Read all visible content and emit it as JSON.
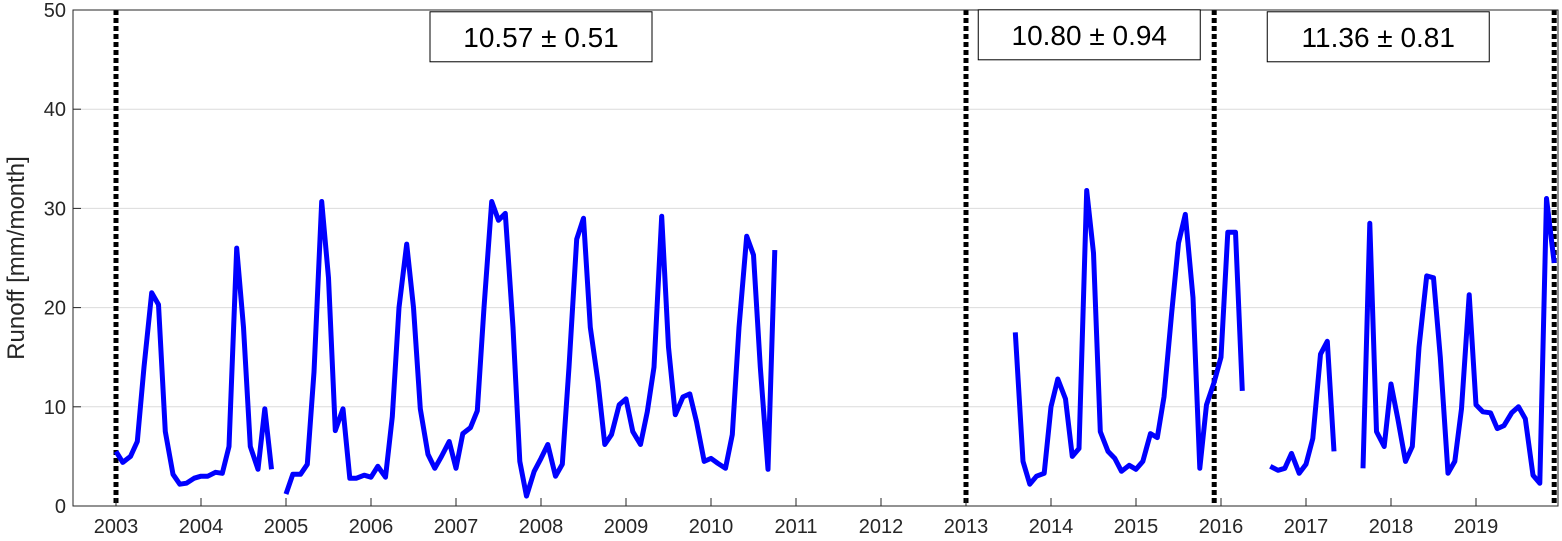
{
  "chart_data": {
    "type": "line",
    "title": "",
    "xlabel": "",
    "ylabel": "Runoff [mm/month]",
    "xlim": [
      2003,
      2020.0
    ],
    "ylim": [
      0,
      50
    ],
    "xticks": [
      2003,
      2004,
      2005,
      2006,
      2007,
      2008,
      2009,
      2010,
      2011,
      2012,
      2013,
      2014,
      2015,
      2016,
      2017,
      2018,
      2019
    ],
    "yticks": [
      0,
      10,
      20,
      30,
      40,
      50
    ],
    "grid": "horizontal",
    "colors": {
      "series": "#0000ff",
      "divider": "#000000",
      "grid": "#dcdcdc"
    },
    "dividers": [
      2003.0,
      2013.0,
      2015.92,
      2019.92
    ],
    "annotations": [
      {
        "text": "10.57 ± 0.51",
        "x": 2008.0,
        "y": 47.3
      },
      {
        "text": "10.80 ± 0.94",
        "x": 2014.45,
        "y": 47.5
      },
      {
        "text": "11.36 ± 0.81",
        "x": 2017.85,
        "y": 47.3
      }
    ],
    "series": [
      {
        "segments": [
          [
            [
              2003.0,
              5.5
            ],
            [
              2003.08,
              4.4
            ],
            [
              2003.17,
              5.0
            ],
            [
              2003.25,
              6.5
            ],
            [
              2003.33,
              14.0
            ],
            [
              2003.42,
              21.5
            ],
            [
              2003.5,
              20.3
            ],
            [
              2003.58,
              7.5
            ],
            [
              2003.67,
              3.2
            ],
            [
              2003.75,
              2.2
            ],
            [
              2003.83,
              2.3
            ],
            [
              2003.92,
              2.8
            ],
            [
              2004.0,
              3.0
            ],
            [
              2004.08,
              3.0
            ],
            [
              2004.17,
              3.4
            ],
            [
              2004.25,
              3.3
            ],
            [
              2004.33,
              6.0
            ],
            [
              2004.42,
              26.0
            ],
            [
              2004.5,
              18.0
            ],
            [
              2004.58,
              6.0
            ],
            [
              2004.67,
              3.7
            ],
            [
              2004.75,
              9.8
            ],
            [
              2004.83,
              3.7
            ]
          ],
          [
            [
              2005.0,
              1.2
            ],
            [
              2005.08,
              3.2
            ],
            [
              2005.17,
              3.2
            ],
            [
              2005.25,
              4.2
            ],
            [
              2005.33,
              13.5
            ],
            [
              2005.42,
              30.7
            ],
            [
              2005.5,
              23.0
            ],
            [
              2005.58,
              7.6
            ],
            [
              2005.67,
              9.8
            ],
            [
              2005.75,
              2.8
            ],
            [
              2005.83,
              2.8
            ],
            [
              2005.92,
              3.1
            ],
            [
              2006.0,
              2.9
            ],
            [
              2006.08,
              4.0
            ],
            [
              2006.17,
              2.9
            ],
            [
              2006.25,
              9.0
            ],
            [
              2006.33,
              20.0
            ],
            [
              2006.42,
              26.4
            ],
            [
              2006.5,
              20.0
            ],
            [
              2006.58,
              9.8
            ],
            [
              2006.67,
              5.2
            ],
            [
              2006.75,
              3.8
            ],
            [
              2006.83,
              5.0
            ],
            [
              2006.92,
              6.5
            ],
            [
              2007.0,
              3.8
            ],
            [
              2007.08,
              7.3
            ],
            [
              2007.17,
              7.9
            ],
            [
              2007.25,
              9.6
            ],
            [
              2007.33,
              20.0
            ],
            [
              2007.42,
              30.7
            ],
            [
              2007.5,
              28.8
            ],
            [
              2007.58,
              29.5
            ],
            [
              2007.67,
              18.0
            ],
            [
              2007.75,
              4.5
            ],
            [
              2007.83,
              1.0
            ],
            [
              2007.92,
              3.5
            ],
            [
              2008.0,
              4.8
            ],
            [
              2008.08,
              6.2
            ],
            [
              2008.17,
              3.0
            ],
            [
              2008.25,
              4.2
            ],
            [
              2008.33,
              14.0
            ],
            [
              2008.42,
              26.9
            ],
            [
              2008.5,
              29.0
            ],
            [
              2008.58,
              18.0
            ],
            [
              2008.67,
              12.5
            ],
            [
              2008.75,
              6.2
            ],
            [
              2008.83,
              7.2
            ],
            [
              2008.92,
              10.2
            ],
            [
              2009.0,
              10.8
            ],
            [
              2009.08,
              7.5
            ],
            [
              2009.17,
              6.2
            ],
            [
              2009.25,
              9.5
            ],
            [
              2009.33,
              14.0
            ],
            [
              2009.42,
              29.2
            ],
            [
              2009.5,
              16.0
            ],
            [
              2009.58,
              9.2
            ],
            [
              2009.67,
              11.0
            ],
            [
              2009.75,
              11.3
            ],
            [
              2009.83,
              8.5
            ],
            [
              2009.92,
              4.5
            ],
            [
              2010.0,
              4.8
            ],
            [
              2010.08,
              4.3
            ],
            [
              2010.17,
              3.8
            ],
            [
              2010.25,
              7.2
            ],
            [
              2010.33,
              18.0
            ],
            [
              2010.42,
              27.2
            ],
            [
              2010.5,
              25.3
            ],
            [
              2010.58,
              14.0
            ],
            [
              2010.67,
              3.7
            ],
            [
              2010.75,
              25.8
            ]
          ],
          [
            [
              2013.58,
              17.5
            ],
            [
              2013.67,
              4.5
            ],
            [
              2013.75,
              2.2
            ],
            [
              2013.83,
              3.0
            ],
            [
              2013.92,
              3.3
            ],
            [
              2014.0,
              10.0
            ],
            [
              2014.08,
              12.8
            ],
            [
              2014.17,
              10.8
            ],
            [
              2014.25,
              5.0
            ],
            [
              2014.33,
              5.8
            ],
            [
              2014.42,
              31.8
            ],
            [
              2014.5,
              25.5
            ],
            [
              2014.58,
              7.5
            ],
            [
              2014.67,
              5.5
            ],
            [
              2014.75,
              4.8
            ],
            [
              2014.83,
              3.5
            ],
            [
              2014.92,
              4.1
            ],
            [
              2015.0,
              3.7
            ],
            [
              2015.08,
              4.5
            ],
            [
              2015.17,
              7.3
            ],
            [
              2015.25,
              6.9
            ],
            [
              2015.33,
              11.0
            ],
            [
              2015.42,
              19.5
            ],
            [
              2015.5,
              26.5
            ],
            [
              2015.58,
              29.4
            ],
            [
              2015.67,
              21.0
            ],
            [
              2015.75,
              3.8
            ],
            [
              2015.83,
              10.2
            ],
            [
              2015.92,
              12.5
            ],
            [
              2016.0,
              15.0
            ],
            [
              2016.08,
              27.6
            ],
            [
              2016.17,
              27.6
            ],
            [
              2016.25,
              11.6
            ]
          ],
          [
            [
              2016.58,
              4.0
            ],
            [
              2016.67,
              3.6
            ],
            [
              2016.75,
              3.8
            ],
            [
              2016.83,
              5.3
            ],
            [
              2016.92,
              3.3
            ],
            [
              2017.0,
              4.2
            ],
            [
              2017.08,
              6.8
            ],
            [
              2017.17,
              15.3
            ],
            [
              2017.25,
              16.6
            ],
            [
              2017.33,
              5.5
            ]
          ],
          [
            [
              2017.67,
              3.8
            ],
            [
              2017.75,
              28.5
            ],
            [
              2017.83,
              7.5
            ],
            [
              2017.92,
              6.0
            ],
            [
              2018.0,
              12.3
            ],
            [
              2018.08,
              8.8
            ],
            [
              2018.17,
              4.5
            ],
            [
              2018.25,
              6.0
            ],
            [
              2018.33,
              16.0
            ],
            [
              2018.42,
              23.2
            ],
            [
              2018.5,
              23.0
            ],
            [
              2018.58,
              15.0
            ],
            [
              2018.67,
              3.3
            ],
            [
              2018.75,
              4.5
            ],
            [
              2018.83,
              9.8
            ],
            [
              2018.92,
              21.3
            ],
            [
              2019.0,
              10.2
            ],
            [
              2019.08,
              9.5
            ],
            [
              2019.17,
              9.4
            ],
            [
              2019.25,
              7.8
            ],
            [
              2019.33,
              8.1
            ],
            [
              2019.42,
              9.4
            ],
            [
              2019.5,
              10.0
            ],
            [
              2019.58,
              8.8
            ],
            [
              2019.67,
              3.1
            ],
            [
              2019.75,
              2.3
            ],
            [
              2019.83,
              31.0
            ],
            [
              2019.92,
              24.5
            ]
          ]
        ]
      }
    ]
  }
}
